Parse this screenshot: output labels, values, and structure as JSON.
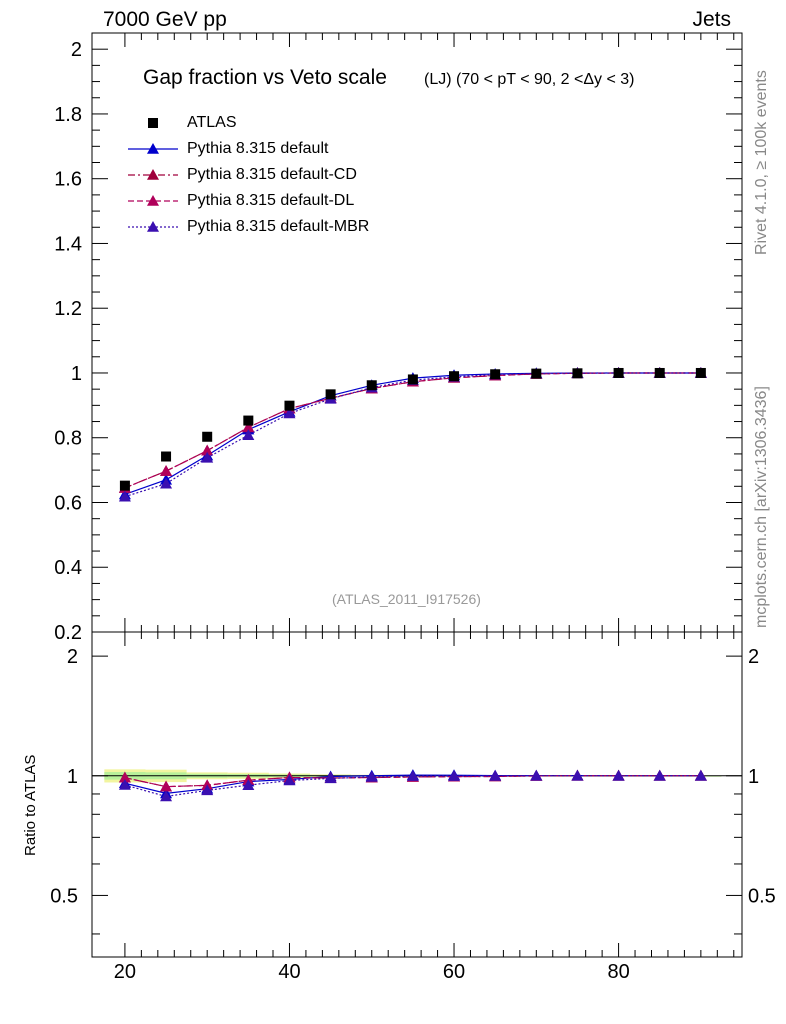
{
  "header": {
    "left": "7000 GeV pp",
    "right": "Jets"
  },
  "title": "Gap fraction vs Veto scale",
  "subtitle": "(LJ) (70 < pT <  90, 2 <Δy < 3)",
  "side_text": {
    "rivet": "Rivet 4.1.0, ≥ 100k events",
    "mcplots": "mcplots.cern.ch [arXiv:1306.3436]"
  },
  "analysis_tag": "(ATLAS_2011_I917526)",
  "ratio_ylabel": "Ratio to ATLAS",
  "legend": [
    "ATLAS",
    "Pythia 8.315 default",
    "Pythia 8.315 default-CD",
    "Pythia 8.315 default-DL",
    "Pythia 8.315 default-MBR"
  ],
  "chart_data": {
    "type": "line",
    "x": [
      20,
      25,
      30,
      35,
      40,
      45,
      50,
      55,
      60,
      65,
      70,
      75,
      80,
      85,
      90
    ],
    "xlim": [
      16,
      95
    ],
    "main_ylim": [
      0.2,
      2.05
    ],
    "main_yticks": [
      "0.2",
      "0.4",
      "0.6",
      "0.8",
      "1",
      "1.2",
      "1.4",
      "1.6",
      "1.8",
      "2"
    ],
    "ratio_ylim": [
      0.35,
      2.3
    ],
    "ratio_yticks": [
      "0.5",
      "1",
      "2"
    ],
    "xticks": [
      "20",
      "40",
      "60",
      "80"
    ],
    "data": {
      "name": "ATLAS",
      "values": [
        0.652,
        0.742,
        0.803,
        0.853,
        0.899,
        0.934,
        0.962,
        0.98,
        0.99,
        0.996,
        0.998,
        0.999,
        1.0,
        1.0,
        1.0
      ]
    },
    "series": [
      {
        "name": "Pythia 8.315 default",
        "color": "#0000cc",
        "style": "solid",
        "values": [
          0.625,
          0.67,
          0.745,
          0.825,
          0.88,
          0.93,
          0.962,
          0.984,
          0.993,
          0.997,
          0.999,
          1.0,
          1.0,
          1.0,
          1.0
        ],
        "ratio": [
          0.958,
          0.903,
          0.928,
          0.967,
          0.979,
          0.996,
          1.0,
          1.004,
          1.003,
          1.001,
          1.001,
          1.001,
          1.0,
          1.0,
          1.0
        ]
      },
      {
        "name": "Pythia 8.315 default-CD",
        "color": "#a0003c",
        "style": "dashdot",
        "values": [
          0.645,
          0.697,
          0.76,
          0.832,
          0.89,
          0.922,
          0.952,
          0.973,
          0.985,
          0.992,
          0.997,
          0.999,
          1.0,
          1.0,
          1.0
        ],
        "ratio": [
          0.989,
          0.939,
          0.946,
          0.975,
          0.99,
          0.987,
          0.99,
          0.993,
          0.995,
          0.996,
          0.999,
          1.0,
          1.0,
          1.0,
          1.0
        ]
      },
      {
        "name": "Pythia 8.315 default-DL",
        "color": "#b0005a",
        "style": "dashed",
        "values": [
          0.645,
          0.697,
          0.76,
          0.832,
          0.89,
          0.922,
          0.952,
          0.973,
          0.985,
          0.992,
          0.997,
          0.999,
          1.0,
          1.0,
          1.0
        ],
        "ratio": [
          0.989,
          0.939,
          0.946,
          0.975,
          0.99,
          0.987,
          0.99,
          0.993,
          0.995,
          0.996,
          0.999,
          1.0,
          1.0,
          1.0,
          1.0
        ]
      },
      {
        "name": "Pythia 8.315 default-MBR",
        "color": "#3a0fb0",
        "style": "dotted",
        "values": [
          0.618,
          0.658,
          0.738,
          0.808,
          0.875,
          0.92,
          0.955,
          0.978,
          0.988,
          0.995,
          0.998,
          0.999,
          1.0,
          1.0,
          1.0
        ],
        "ratio": [
          0.948,
          0.887,
          0.919,
          0.947,
          0.973,
          0.985,
          0.993,
          0.998,
          0.998,
          0.999,
          1.0,
          1.0,
          1.0,
          1.0,
          1.0
        ]
      }
    ],
    "uncertainty_band": {
      "x_edges": [
        17.5,
        22.5,
        27.5,
        32.5,
        37.5,
        42.5,
        47.5,
        52.5,
        57.5,
        62.5,
        67.5,
        72.5,
        77.5,
        82.5,
        87.5,
        92.5
      ],
      "outer": [
        0.038,
        0.036,
        0.02,
        0.018,
        0.013,
        0.008,
        0.006,
        0.004,
        0.003,
        0.002,
        0.002,
        0.001,
        0.001,
        0.001,
        0.001
      ],
      "inner": [
        0.022,
        0.02,
        0.012,
        0.01,
        0.007,
        0.005,
        0.003,
        0.002,
        0.002,
        0.001,
        0.001,
        0.001,
        0.001,
        0.001,
        0.001
      ]
    }
  }
}
